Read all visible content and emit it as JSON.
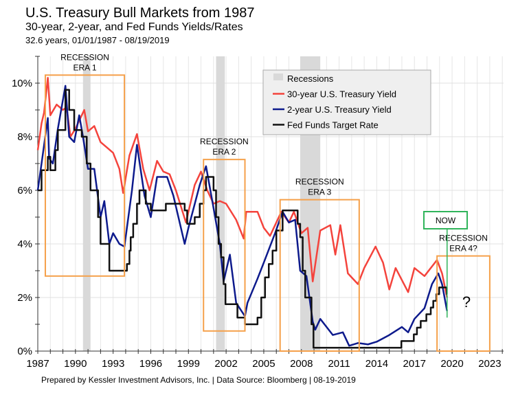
{
  "chart_data": {
    "type": "line",
    "title": "U.S. Treasury Bull Markets from 1987",
    "subtitle": "30-year, 2-year, and Fed Funds Yields/Rates",
    "period": "32.6 years, 01/01/1987 - 08/19/2019",
    "footer": "Prepared by Kessler Investment Advisors, Inc. | Data Source: Bloomberg | 08-19-2019",
    "xlim": [
      1987,
      2024.1
    ],
    "ylim": [
      0,
      11
    ],
    "x_ticks": [
      "1987",
      "1990",
      "1993",
      "1996",
      "1999",
      "2002",
      "2005",
      "2008",
      "2011",
      "2014",
      "2017",
      "2020",
      "2023"
    ],
    "y_ticks": [
      "0%",
      "2%",
      "4%",
      "6%",
      "8%",
      "10%"
    ],
    "grid": true,
    "legend_position": "top-right",
    "legend": [
      "Recessions",
      "30-year U.S. Treasury Yield",
      "2-year U.S. Treasury Yield",
      "Fed Funds Target Rate"
    ],
    "colors": {
      "recession": "#d9d9d9",
      "thirty_year": "#f4433c",
      "two_year": "#0d1a8c",
      "fed_funds": "#111111",
      "era_box": "#f5a04a",
      "now_box": "#2fb45a"
    },
    "recessions": [
      [
        1990.6,
        1991.2
      ],
      [
        2001.2,
        2001.9
      ],
      [
        2007.9,
        2009.5
      ]
    ],
    "series": [
      {
        "name": "30-year U.S. Treasury Yield",
        "points": [
          [
            1987.0,
            7.5
          ],
          [
            1987.3,
            8.5
          ],
          [
            1987.5,
            8.9
          ],
          [
            1987.8,
            10.2
          ],
          [
            1988.0,
            8.8
          ],
          [
            1988.5,
            9.2
          ],
          [
            1989.0,
            9.0
          ],
          [
            1989.3,
            9.1
          ],
          [
            1989.6,
            8.0
          ],
          [
            1990.0,
            8.3
          ],
          [
            1990.7,
            9.0
          ],
          [
            1991.0,
            8.2
          ],
          [
            1991.5,
            8.4
          ],
          [
            1992.0,
            7.8
          ],
          [
            1992.5,
            7.6
          ],
          [
            1993.0,
            7.4
          ],
          [
            1993.5,
            6.8
          ],
          [
            1993.8,
            5.9
          ],
          [
            1994.3,
            7.3
          ],
          [
            1994.9,
            8.1
          ],
          [
            1995.4,
            6.8
          ],
          [
            1995.9,
            6.0
          ],
          [
            1996.5,
            7.1
          ],
          [
            1997.0,
            6.7
          ],
          [
            1997.5,
            6.6
          ],
          [
            1998.0,
            6.0
          ],
          [
            1998.8,
            4.8
          ],
          [
            1999.5,
            6.2
          ],
          [
            2000.0,
            6.7
          ],
          [
            2000.5,
            6.0
          ],
          [
            2001.0,
            5.5
          ],
          [
            2001.5,
            5.6
          ],
          [
            2002.0,
            5.5
          ],
          [
            2002.8,
            4.9
          ],
          [
            2003.4,
            4.2
          ],
          [
            2003.6,
            5.2
          ],
          [
            2004.5,
            5.2
          ],
          [
            2005.0,
            4.6
          ],
          [
            2005.5,
            4.3
          ],
          [
            2006.4,
            5.2
          ],
          [
            2007.0,
            4.8
          ],
          [
            2007.4,
            5.2
          ],
          [
            2008.0,
            4.4
          ],
          [
            2008.5,
            4.6
          ],
          [
            2008.9,
            2.6
          ],
          [
            2009.5,
            4.5
          ],
          [
            2010.3,
            4.7
          ],
          [
            2010.7,
            3.6
          ],
          [
            2011.1,
            4.7
          ],
          [
            2011.7,
            2.9
          ],
          [
            2012.5,
            2.5
          ],
          [
            2013.0,
            3.1
          ],
          [
            2013.9,
            3.9
          ],
          [
            2014.5,
            3.3
          ],
          [
            2015.0,
            2.3
          ],
          [
            2015.5,
            3.1
          ],
          [
            2016.5,
            2.2
          ],
          [
            2017.0,
            3.1
          ],
          [
            2017.8,
            2.8
          ],
          [
            2018.8,
            3.4
          ],
          [
            2019.2,
            2.9
          ],
          [
            2019.6,
            2.0
          ]
        ]
      },
      {
        "name": "2-year U.S. Treasury Yield",
        "points": [
          [
            1987.0,
            6.0
          ],
          [
            1987.3,
            7.0
          ],
          [
            1987.8,
            8.7
          ],
          [
            1987.9,
            7.2
          ],
          [
            1988.2,
            7.0
          ],
          [
            1988.6,
            8.3
          ],
          [
            1989.2,
            9.9
          ],
          [
            1989.5,
            8.0
          ],
          [
            1989.9,
            7.8
          ],
          [
            1990.3,
            8.8
          ],
          [
            1990.6,
            8.0
          ],
          [
            1991.0,
            6.8
          ],
          [
            1991.5,
            6.8
          ],
          [
            1992.0,
            5.0
          ],
          [
            1992.3,
            5.6
          ],
          [
            1992.7,
            4.0
          ],
          [
            1993.0,
            4.4
          ],
          [
            1993.5,
            4.0
          ],
          [
            1993.9,
            3.9
          ],
          [
            1994.5,
            6.0
          ],
          [
            1994.9,
            7.7
          ],
          [
            1995.5,
            5.8
          ],
          [
            1996.0,
            5.0
          ],
          [
            1996.5,
            6.5
          ],
          [
            1997.3,
            6.5
          ],
          [
            1997.8,
            5.8
          ],
          [
            1998.7,
            4.0
          ],
          [
            1999.0,
            4.6
          ],
          [
            1999.9,
            6.2
          ],
          [
            2000.4,
            6.9
          ],
          [
            2000.9,
            5.6
          ],
          [
            2001.5,
            4.0
          ],
          [
            2001.8,
            2.6
          ],
          [
            2002.3,
            3.6
          ],
          [
            2002.8,
            1.8
          ],
          [
            2003.5,
            1.3
          ],
          [
            2003.7,
            1.8
          ],
          [
            2004.5,
            2.7
          ],
          [
            2005.0,
            3.3
          ],
          [
            2005.9,
            4.4
          ],
          [
            2006.5,
            5.2
          ],
          [
            2007.0,
            4.8
          ],
          [
            2007.5,
            4.9
          ],
          [
            2007.9,
            3.0
          ],
          [
            2008.4,
            2.8
          ],
          [
            2008.9,
            1.1
          ],
          [
            2009.1,
            0.8
          ],
          [
            2009.5,
            1.2
          ],
          [
            2010.0,
            0.9
          ],
          [
            2010.5,
            0.6
          ],
          [
            2011.3,
            0.7
          ],
          [
            2011.8,
            0.2
          ],
          [
            2012.5,
            0.3
          ],
          [
            2013.3,
            0.25
          ],
          [
            2014.0,
            0.35
          ],
          [
            2015.0,
            0.6
          ],
          [
            2016.0,
            0.9
          ],
          [
            2016.5,
            0.7
          ],
          [
            2017.0,
            1.2
          ],
          [
            2017.8,
            1.6
          ],
          [
            2018.4,
            2.5
          ],
          [
            2018.9,
            2.9
          ],
          [
            2019.2,
            2.5
          ],
          [
            2019.6,
            1.5
          ]
        ]
      },
      {
        "name": "Fed Funds Target Rate",
        "step": true,
        "points": [
          [
            1987.0,
            6.0
          ],
          [
            1987.3,
            6.75
          ],
          [
            1987.8,
            7.25
          ],
          [
            1988.0,
            6.75
          ],
          [
            1988.4,
            7.5
          ],
          [
            1988.6,
            8.25
          ],
          [
            1989.2,
            9.75
          ],
          [
            1989.5,
            9.0
          ],
          [
            1989.9,
            8.25
          ],
          [
            1990.5,
            8.0
          ],
          [
            1990.9,
            7.0
          ],
          [
            1991.2,
            6.0
          ],
          [
            1991.8,
            5.0
          ],
          [
            1992.0,
            4.0
          ],
          [
            1992.7,
            3.0
          ],
          [
            1994.1,
            3.25
          ],
          [
            1994.3,
            3.75
          ],
          [
            1994.4,
            4.25
          ],
          [
            1994.6,
            4.75
          ],
          [
            1994.9,
            5.5
          ],
          [
            1995.1,
            6.0
          ],
          [
            1995.6,
            5.5
          ],
          [
            1996.0,
            5.25
          ],
          [
            1997.2,
            5.5
          ],
          [
            1998.7,
            5.25
          ],
          [
            1998.9,
            4.75
          ],
          [
            1999.5,
            5.0
          ],
          [
            1999.9,
            5.5
          ],
          [
            2000.2,
            6.0
          ],
          [
            2000.4,
            6.5
          ],
          [
            2001.0,
            6.0
          ],
          [
            2001.2,
            5.0
          ],
          [
            2001.4,
            4.0
          ],
          [
            2001.6,
            3.5
          ],
          [
            2001.8,
            2.5
          ],
          [
            2001.95,
            1.75
          ],
          [
            2002.9,
            1.25
          ],
          [
            2003.5,
            1.0
          ],
          [
            2004.5,
            1.25
          ],
          [
            2004.8,
            2.0
          ],
          [
            2005.1,
            2.75
          ],
          [
            2005.4,
            3.25
          ],
          [
            2005.7,
            3.75
          ],
          [
            2006.0,
            4.5
          ],
          [
            2006.5,
            5.25
          ],
          [
            2007.7,
            4.75
          ],
          [
            2007.9,
            4.25
          ],
          [
            2008.1,
            3.0
          ],
          [
            2008.3,
            2.0
          ],
          [
            2008.8,
            1.0
          ],
          [
            2008.96,
            0.125
          ],
          [
            2015.96,
            0.375
          ],
          [
            2016.95,
            0.625
          ],
          [
            2017.2,
            0.875
          ],
          [
            2017.5,
            1.125
          ],
          [
            2017.95,
            1.375
          ],
          [
            2018.3,
            1.625
          ],
          [
            2018.5,
            1.875
          ],
          [
            2018.75,
            2.125
          ],
          [
            2018.97,
            2.375
          ],
          [
            2019.58,
            2.125
          ],
          [
            2019.62,
            2.125
          ]
        ]
      }
    ],
    "annotations": {
      "era1": {
        "lines": [
          "RECESSION",
          "ERA 1"
        ],
        "box": {
          "x": [
            1987.6,
            1993.9
          ],
          "y": [
            2.8,
            10.3
          ]
        }
      },
      "era2": {
        "lines": [
          "RECESSION",
          "ERA 2"
        ],
        "box": {
          "x": [
            2000.2,
            2003.5
          ],
          "y": [
            0.75,
            7.15
          ]
        }
      },
      "era3": {
        "lines": [
          "RECESSION",
          "ERA 3"
        ],
        "box": {
          "x": [
            2006.3,
            2012.6
          ],
          "y": [
            0,
            5.65
          ]
        }
      },
      "era4": {
        "lines": [
          "RECESSION",
          "ERA 4?"
        ],
        "box": {
          "x": [
            2018.8,
            2023.0
          ],
          "y": [
            0,
            3.55
          ]
        }
      },
      "now": {
        "label": "NOW",
        "x": 2019.6,
        "y_range": [
          1.25,
          4.7
        ]
      },
      "question": "?"
    }
  }
}
